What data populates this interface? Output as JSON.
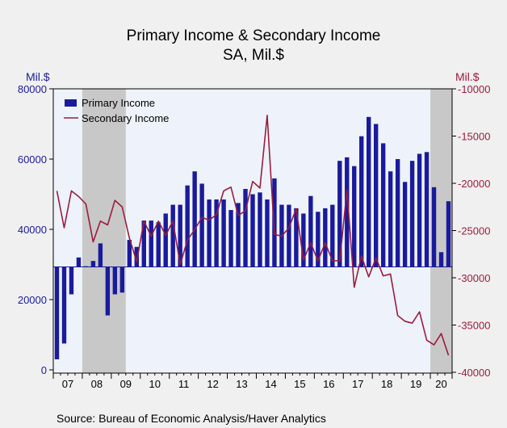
{
  "chart_data": {
    "type": "bar+line",
    "title": "Primary Income & Secondary Income",
    "subtitle": "SA, Mil.$",
    "left_unit": "Mil.$",
    "right_unit": "Mil.$",
    "source": "Source:  Bureau of Economic Analysis/Haver Analytics",
    "left_axis": {
      "min": 0,
      "max": 80000,
      "ticks": [
        0,
        20000,
        40000,
        60000,
        80000
      ]
    },
    "right_axis": {
      "min": -40000,
      "max": -10000,
      "ticks": [
        -40000,
        -35000,
        -30000,
        -25000,
        -20000,
        -15000,
        -10000
      ]
    },
    "bar_baseline": 29300,
    "year_labels": [
      "07",
      "08",
      "09",
      "10",
      "11",
      "12",
      "13",
      "14",
      "15",
      "16",
      "17",
      "18",
      "19",
      "20"
    ],
    "first_year": 2007,
    "recession_shading": [
      {
        "start": "2008Q1",
        "end": "2009Q2"
      },
      {
        "start": "2020Q1",
        "end": "2020Q4"
      }
    ],
    "colors": {
      "bar": "#1a1a9c",
      "line": "#9c1c3c",
      "plot_bg": "#eef3fb",
      "recession": "#c8c8c8",
      "left_axis": "#1a1a9c",
      "right_axis": "#9c1c3c"
    },
    "series": [
      {
        "name": "Primary Income",
        "type": "bar",
        "axis": "left",
        "values": [
          3000,
          7500,
          21500,
          32000,
          29500,
          31000,
          36000,
          15500,
          21500,
          22000,
          37000,
          35000,
          42500,
          42500,
          42000,
          44500,
          47000,
          47000,
          52500,
          56500,
          53000,
          48500,
          48500,
          48500,
          45500,
          47500,
          51500,
          50000,
          50500,
          48500,
          54500,
          47000,
          47000,
          46000,
          44500,
          49500,
          45000,
          46000,
          47000,
          59500,
          60500,
          58000,
          66500,
          72000,
          70000,
          64500,
          56500,
          60000,
          53500,
          59500,
          61500,
          62000,
          52000,
          33500,
          48000
        ]
      },
      {
        "name": "Secondary Income",
        "type": "line",
        "axis": "right",
        "values": [
          -20800,
          -24700,
          -20800,
          -21400,
          -22200,
          -26200,
          -24000,
          -24400,
          -21800,
          -22500,
          -25800,
          -28300,
          -24000,
          -25600,
          -24000,
          -25500,
          -24000,
          -28600,
          -26000,
          -24900,
          -23600,
          -23900,
          -23300,
          -20800,
          -20400,
          -23400,
          -22900,
          -19800,
          -20500,
          -12800,
          -25400,
          -25600,
          -24700,
          -22700,
          -28100,
          -26300,
          -28200,
          -26300,
          -28200,
          -28200,
          -20700,
          -31000,
          -27700,
          -29900,
          -27900,
          -29800,
          -29600,
          -34000,
          -34600,
          -34800,
          -33600,
          -36600,
          -37100,
          -35900,
          -38200
        ]
      }
    ]
  }
}
